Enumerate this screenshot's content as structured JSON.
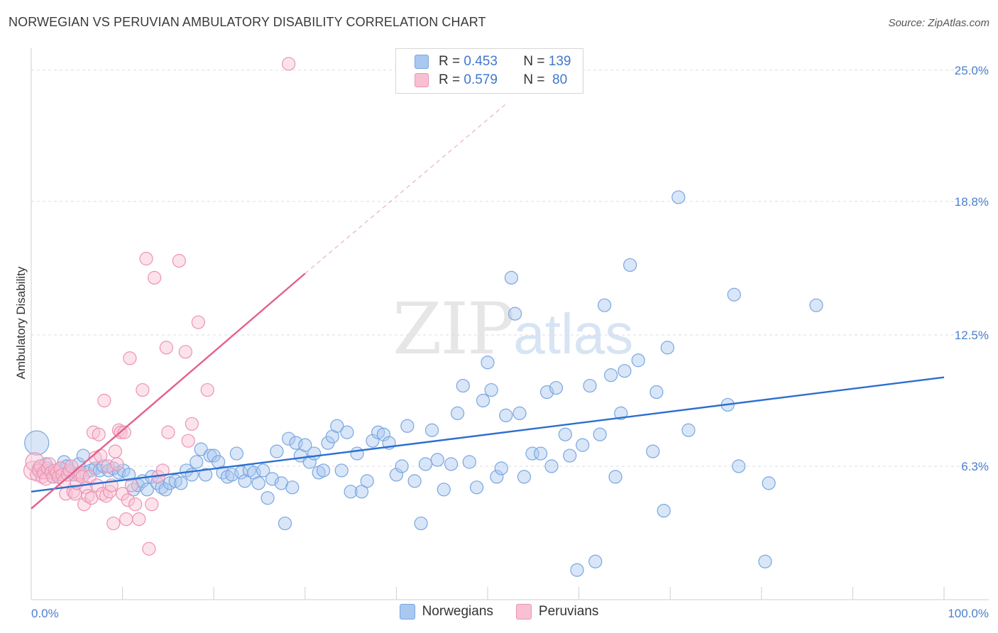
{
  "title": "NORWEGIAN VS PERUVIAN AMBULATORY DISABILITY CORRELATION CHART",
  "source": "Source: ZipAtlas.com",
  "watermark": {
    "zip": "ZIP",
    "atlas": "atlas"
  },
  "legend": {
    "rows": [
      {
        "r_label": "R = ",
        "r_value": "0.453",
        "n_label": "N = ",
        "n_value": "139",
        "color": "#a9c8f0",
        "border": "#7aa6e0"
      },
      {
        "r_label": "R = ",
        "r_value": "0.579",
        "n_label": "N = ",
        "n_value": " 80",
        "color": "#f8c0d2",
        "border": "#ec93b2"
      }
    ]
  },
  "chart_data": {
    "type": "scatter",
    "title": "NORWEGIAN VS PERUVIAN AMBULATORY DISABILITY CORRELATION CHART",
    "ylabel": "Ambulatory Disability",
    "xlabel": "",
    "xlim": [
      0,
      100
    ],
    "ylim": [
      0,
      25.7
    ],
    "x_tick_labels": [
      "0.0%",
      "100.0%"
    ],
    "y_ticks": [
      {
        "value": 6.3,
        "label": "6.3%"
      },
      {
        "value": 12.5,
        "label": "12.5%"
      },
      {
        "value": 18.8,
        "label": "18.8%"
      },
      {
        "value": 25.0,
        "label": "25.0%"
      }
    ],
    "grid": "horizontal-dashed",
    "legend_position": "top-center",
    "series": [
      {
        "name": "Norwegians",
        "color": "#7aa6e0",
        "fill": "#a9c8f0",
        "trend": {
          "x0": 0,
          "y0": 5.1,
          "x1": 100,
          "y1": 10.5,
          "color": "#2a6fd1"
        },
        "points": [
          [
            0.6,
            7.4
          ],
          [
            0.8,
            6.2
          ],
          [
            1.2,
            6.0
          ],
          [
            1.6,
            6.4
          ],
          [
            2.0,
            6.1
          ],
          [
            2.4,
            5.8
          ],
          [
            2.8,
            5.9
          ],
          [
            3.2,
            6.2
          ],
          [
            3.6,
            6.5
          ],
          [
            3.9,
            6.3
          ],
          [
            4.3,
            6.0
          ],
          [
            4.7,
            5.9
          ],
          [
            5.2,
            6.4
          ],
          [
            5.7,
            6.8
          ],
          [
            6.0,
            6.0
          ],
          [
            6.5,
            6.1
          ],
          [
            7.0,
            6.2
          ],
          [
            7.5,
            6.1
          ],
          [
            7.9,
            6.3
          ],
          [
            8.5,
            6.1
          ],
          [
            9.0,
            6.2
          ],
          [
            9.6,
            6.0
          ],
          [
            10.1,
            6.1
          ],
          [
            10.7,
            5.9
          ],
          [
            11.2,
            5.2
          ],
          [
            11.7,
            5.4
          ],
          [
            12.2,
            5.6
          ],
          [
            12.7,
            5.2
          ],
          [
            13.2,
            5.8
          ],
          [
            13.8,
            5.5
          ],
          [
            14.3,
            5.3
          ],
          [
            14.7,
            5.2
          ],
          [
            15.2,
            5.5
          ],
          [
            15.8,
            5.6
          ],
          [
            16.4,
            5.5
          ],
          [
            17.0,
            6.1
          ],
          [
            17.6,
            5.9
          ],
          [
            18.1,
            6.5
          ],
          [
            18.6,
            7.1
          ],
          [
            19.1,
            5.9
          ],
          [
            19.6,
            6.8
          ],
          [
            20.0,
            6.8
          ],
          [
            20.5,
            6.5
          ],
          [
            21.0,
            6.0
          ],
          [
            21.5,
            5.8
          ],
          [
            22.0,
            5.9
          ],
          [
            22.5,
            6.9
          ],
          [
            23.0,
            6.0
          ],
          [
            23.4,
            5.6
          ],
          [
            23.9,
            6.1
          ],
          [
            24.4,
            6.0
          ],
          [
            24.9,
            5.5
          ],
          [
            25.4,
            6.1
          ],
          [
            25.9,
            4.8
          ],
          [
            26.4,
            5.7
          ],
          [
            26.9,
            7.0
          ],
          [
            27.4,
            5.5
          ],
          [
            27.8,
            3.6
          ],
          [
            28.2,
            7.6
          ],
          [
            28.6,
            5.3
          ],
          [
            29.0,
            7.4
          ],
          [
            29.5,
            6.8
          ],
          [
            30.0,
            7.3
          ],
          [
            30.5,
            6.5
          ],
          [
            31.0,
            6.9
          ],
          [
            31.5,
            6.0
          ],
          [
            32.0,
            6.1
          ],
          [
            32.5,
            7.4
          ],
          [
            33.0,
            7.7
          ],
          [
            33.5,
            8.2
          ],
          [
            34.0,
            6.1
          ],
          [
            34.6,
            7.9
          ],
          [
            35.0,
            5.1
          ],
          [
            35.7,
            6.9
          ],
          [
            36.2,
            5.1
          ],
          [
            36.8,
            5.6
          ],
          [
            37.4,
            7.5
          ],
          [
            38.0,
            7.9
          ],
          [
            38.6,
            7.8
          ],
          [
            39.2,
            7.4
          ],
          [
            40.0,
            5.9
          ],
          [
            40.6,
            6.3
          ],
          [
            41.2,
            8.2
          ],
          [
            42.0,
            5.6
          ],
          [
            42.7,
            3.6
          ],
          [
            43.2,
            6.4
          ],
          [
            43.9,
            8.0
          ],
          [
            44.5,
            6.6
          ],
          [
            45.2,
            5.2
          ],
          [
            46.0,
            6.4
          ],
          [
            46.7,
            8.8
          ],
          [
            47.3,
            10.1
          ],
          [
            48.0,
            6.5
          ],
          [
            48.8,
            5.3
          ],
          [
            49.5,
            9.4
          ],
          [
            50.0,
            11.2
          ],
          [
            50.4,
            9.9
          ],
          [
            51.0,
            5.8
          ],
          [
            51.5,
            6.2
          ],
          [
            52.0,
            8.7
          ],
          [
            52.6,
            15.2
          ],
          [
            53.0,
            13.5
          ],
          [
            53.5,
            8.8
          ],
          [
            54.0,
            5.8
          ],
          [
            54.9,
            6.9
          ],
          [
            55.8,
            6.9
          ],
          [
            56.5,
            9.8
          ],
          [
            57.0,
            6.3
          ],
          [
            57.5,
            10.0
          ],
          [
            58.5,
            7.8
          ],
          [
            59.0,
            6.8
          ],
          [
            59.8,
            1.4
          ],
          [
            60.4,
            7.3
          ],
          [
            61.2,
            10.1
          ],
          [
            61.8,
            1.8
          ],
          [
            62.3,
            7.8
          ],
          [
            62.8,
            13.9
          ],
          [
            63.5,
            10.6
          ],
          [
            64.0,
            5.8
          ],
          [
            64.6,
            8.8
          ],
          [
            65.0,
            10.8
          ],
          [
            65.6,
            15.8
          ],
          [
            66.5,
            11.3
          ],
          [
            68.1,
            7.0
          ],
          [
            68.5,
            9.8
          ],
          [
            69.3,
            4.2
          ],
          [
            69.7,
            11.9
          ],
          [
            70.9,
            19.0
          ],
          [
            72.0,
            8.0
          ],
          [
            76.3,
            9.2
          ],
          [
            77.0,
            14.4
          ],
          [
            77.5,
            6.3
          ],
          [
            80.4,
            1.8
          ],
          [
            80.8,
            5.5
          ],
          [
            86.0,
            13.9
          ]
        ]
      },
      {
        "name": "Peruvians",
        "color": "#ec93b2",
        "fill": "#f8c0d2",
        "trend": {
          "x0": 0,
          "y0": 4.3,
          "x1": 30,
          "y1": 15.4,
          "ext_x1": 52,
          "ext_y1": 23.4,
          "color": "#e3608d"
        },
        "points": [
          [
            0.2,
            6.1
          ],
          [
            0.4,
            6.5
          ],
          [
            0.6,
            5.9
          ],
          [
            0.8,
            6.1
          ],
          [
            1.0,
            6.3
          ],
          [
            1.2,
            5.8
          ],
          [
            1.4,
            6.0
          ],
          [
            1.6,
            5.7
          ],
          [
            1.8,
            6.2
          ],
          [
            2.0,
            6.4
          ],
          [
            2.2,
            6.0
          ],
          [
            2.4,
            5.8
          ],
          [
            2.6,
            6.1
          ],
          [
            2.8,
            6.0
          ],
          [
            3.0,
            5.8
          ],
          [
            3.2,
            6.2
          ],
          [
            3.4,
            5.9
          ],
          [
            3.6,
            5.6
          ],
          [
            3.8,
            5.0
          ],
          [
            4.0,
            5.9
          ],
          [
            4.2,
            6.1
          ],
          [
            4.4,
            6.3
          ],
          [
            4.6,
            5.1
          ],
          [
            4.8,
            5.0
          ],
          [
            5.0,
            5.5
          ],
          [
            5.2,
            5.9
          ],
          [
            5.4,
            6.0
          ],
          [
            5.6,
            5.8
          ],
          [
            5.8,
            4.5
          ],
          [
            6.0,
            5.3
          ],
          [
            6.2,
            4.9
          ],
          [
            6.4,
            5.8
          ],
          [
            6.6,
            4.8
          ],
          [
            6.8,
            7.9
          ],
          [
            7.0,
            6.7
          ],
          [
            7.2,
            5.4
          ],
          [
            7.4,
            7.8
          ],
          [
            7.6,
            6.8
          ],
          [
            7.8,
            5.0
          ],
          [
            8.0,
            9.4
          ],
          [
            8.2,
            4.9
          ],
          [
            8.4,
            6.3
          ],
          [
            8.6,
            5.1
          ],
          [
            8.8,
            5.4
          ],
          [
            9.0,
            3.6
          ],
          [
            9.2,
            7.0
          ],
          [
            9.4,
            6.4
          ],
          [
            9.6,
            8.0
          ],
          [
            9.8,
            7.9
          ],
          [
            10.0,
            5.0
          ],
          [
            10.2,
            7.9
          ],
          [
            10.4,
            3.8
          ],
          [
            10.6,
            4.7
          ],
          [
            10.8,
            11.4
          ],
          [
            11.0,
            5.4
          ],
          [
            11.4,
            4.5
          ],
          [
            11.8,
            3.8
          ],
          [
            12.2,
            9.9
          ],
          [
            12.6,
            16.1
          ],
          [
            12.9,
            2.4
          ],
          [
            13.2,
            4.5
          ],
          [
            13.5,
            15.2
          ],
          [
            13.9,
            5.8
          ],
          [
            14.4,
            6.1
          ],
          [
            14.8,
            11.9
          ],
          [
            15.0,
            7.9
          ],
          [
            16.2,
            16.0
          ],
          [
            16.9,
            11.7
          ],
          [
            17.2,
            7.5
          ],
          [
            17.6,
            8.3
          ],
          [
            18.3,
            13.1
          ],
          [
            19.3,
            9.9
          ],
          [
            28.2,
            25.3
          ]
        ]
      }
    ]
  }
}
